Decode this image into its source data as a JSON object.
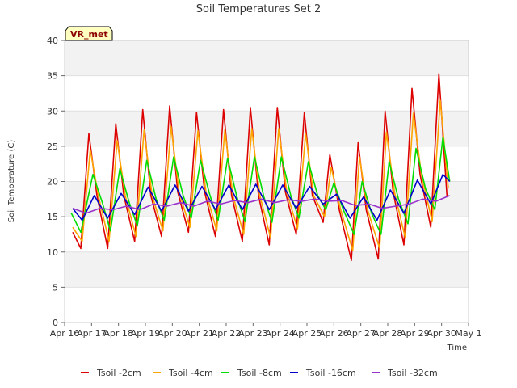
{
  "chart_data": {
    "type": "line",
    "title": "Soil Temperatures Set 2",
    "xlabel": "Time",
    "ylabel": "Soil Temperature (C)",
    "ylim": [
      0,
      40
    ],
    "xlim": [
      "Apr 16",
      "May 1"
    ],
    "yticks": [
      0,
      5,
      10,
      15,
      20,
      25,
      30,
      35,
      40
    ],
    "xticks": [
      "Apr 16",
      "Apr 17",
      "Apr 18",
      "Apr 19",
      "Apr 20",
      "Apr 21",
      "Apr 22",
      "Apr 23",
      "Apr 24",
      "Apr 25",
      "Apr 26",
      "Apr 27",
      "Apr 28",
      "Apr 29",
      "Apr 30",
      "May 1"
    ],
    "grid": "horizontal bands",
    "legend_position": "bottom",
    "badge": "VR_met",
    "series": [
      {
        "name": "Tsoil -2cm",
        "color": "#dd0000",
        "points": [
          [
            0.3,
            12.8
          ],
          [
            0.6,
            10.5
          ],
          [
            0.9,
            26.8
          ],
          [
            1.2,
            18
          ],
          [
            1.6,
            10.5
          ],
          [
            1.9,
            28.2
          ],
          [
            2.2,
            18
          ],
          [
            2.6,
            11.5
          ],
          [
            2.9,
            30.2
          ],
          [
            3.2,
            18
          ],
          [
            3.6,
            12.2
          ],
          [
            3.9,
            30.7
          ],
          [
            4.2,
            18.5
          ],
          [
            4.6,
            12.8
          ],
          [
            4.9,
            29.8
          ],
          [
            5.2,
            18.5
          ],
          [
            5.6,
            12.2
          ],
          [
            5.9,
            30.2
          ],
          [
            6.2,
            18
          ],
          [
            6.6,
            11.5
          ],
          [
            6.9,
            30.5
          ],
          [
            7.2,
            18
          ],
          [
            7.6,
            11
          ],
          [
            7.9,
            30.5
          ],
          [
            8.2,
            18.5
          ],
          [
            8.6,
            12.5
          ],
          [
            8.9,
            29.8
          ],
          [
            9.2,
            18
          ],
          [
            9.6,
            14.2
          ],
          [
            9.85,
            23.8
          ],
          [
            10.2,
            16
          ],
          [
            10.65,
            8.8
          ],
          [
            10.9,
            25.5
          ],
          [
            11.2,
            16
          ],
          [
            11.65,
            9
          ],
          [
            11.9,
            30
          ],
          [
            12.2,
            18.5
          ],
          [
            12.6,
            11
          ],
          [
            12.9,
            33.2
          ],
          [
            13.2,
            21
          ],
          [
            13.6,
            13.5
          ],
          [
            13.9,
            35.3
          ],
          [
            14.2,
            18
          ]
        ]
      },
      {
        "name": "Tsoil -4cm",
        "color": "#ffa500",
        "points": [
          [
            0.3,
            13.5
          ],
          [
            0.65,
            11.5
          ],
          [
            0.95,
            24.5
          ],
          [
            1.25,
            18
          ],
          [
            1.65,
            11.5
          ],
          [
            1.95,
            25.8
          ],
          [
            2.25,
            18
          ],
          [
            2.65,
            12.2
          ],
          [
            2.95,
            27.3
          ],
          [
            3.25,
            18
          ],
          [
            3.65,
            13
          ],
          [
            3.95,
            27.8
          ],
          [
            4.25,
            18.5
          ],
          [
            4.65,
            13.5
          ],
          [
            4.95,
            27.2
          ],
          [
            5.25,
            18.5
          ],
          [
            5.65,
            13
          ],
          [
            5.95,
            27.3
          ],
          [
            6.25,
            18
          ],
          [
            6.65,
            12.5
          ],
          [
            6.95,
            27.5
          ],
          [
            7.25,
            18
          ],
          [
            7.65,
            12
          ],
          [
            7.95,
            27.5
          ],
          [
            8.25,
            18.5
          ],
          [
            8.65,
            13.3
          ],
          [
            8.95,
            26.8
          ],
          [
            9.25,
            18
          ],
          [
            9.65,
            15
          ],
          [
            9.9,
            22
          ],
          [
            10.25,
            16
          ],
          [
            10.7,
            10.2
          ],
          [
            10.95,
            23.5
          ],
          [
            11.25,
            16
          ],
          [
            11.7,
            10.5
          ],
          [
            11.95,
            27
          ],
          [
            12.25,
            18.5
          ],
          [
            12.65,
            12
          ],
          [
            12.95,
            29.7
          ],
          [
            13.25,
            21
          ],
          [
            13.65,
            14.3
          ],
          [
            13.95,
            31.5
          ],
          [
            14.25,
            19
          ]
        ]
      },
      {
        "name": "Tsoil -8cm",
        "color": "#00dd00",
        "points": [
          [
            0.25,
            15.5
          ],
          [
            0.6,
            12.8
          ],
          [
            1.05,
            21
          ],
          [
            1.4,
            17
          ],
          [
            1.7,
            13
          ],
          [
            2.05,
            21.8
          ],
          [
            2.4,
            17
          ],
          [
            2.7,
            13.7
          ],
          [
            3.05,
            23
          ],
          [
            3.4,
            17.5
          ],
          [
            3.7,
            14.5
          ],
          [
            4.05,
            23.5
          ],
          [
            4.4,
            18
          ],
          [
            4.7,
            14.8
          ],
          [
            5.05,
            23
          ],
          [
            5.4,
            18
          ],
          [
            5.7,
            14.5
          ],
          [
            6.05,
            23.3
          ],
          [
            6.4,
            17.8
          ],
          [
            6.7,
            14.3
          ],
          [
            7.05,
            23.5
          ],
          [
            7.4,
            17.8
          ],
          [
            7.7,
            14.2
          ],
          [
            8.05,
            23.5
          ],
          [
            8.4,
            18
          ],
          [
            8.7,
            14.8
          ],
          [
            9.05,
            22.8
          ],
          [
            9.4,
            18
          ],
          [
            9.7,
            16
          ],
          [
            10.0,
            19.8
          ],
          [
            10.35,
            16
          ],
          [
            10.75,
            12.5
          ],
          [
            11.05,
            20
          ],
          [
            11.4,
            15.5
          ],
          [
            11.75,
            12.5
          ],
          [
            12.05,
            22.8
          ],
          [
            12.4,
            17.5
          ],
          [
            12.75,
            14
          ],
          [
            13.05,
            24.7
          ],
          [
            13.4,
            19
          ],
          [
            13.75,
            16
          ],
          [
            14.05,
            26.3
          ],
          [
            14.3,
            20
          ]
        ]
      },
      {
        "name": "Tsoil -16cm",
        "color": "#0000cc",
        "points": [
          [
            0.3,
            16.2
          ],
          [
            0.65,
            14.5
          ],
          [
            1.1,
            18
          ],
          [
            1.6,
            14.8
          ],
          [
            2.1,
            18.3
          ],
          [
            2.6,
            15.3
          ],
          [
            3.1,
            19.2
          ],
          [
            3.6,
            15.8
          ],
          [
            4.1,
            19.5
          ],
          [
            4.6,
            15.8
          ],
          [
            5.1,
            19.3
          ],
          [
            5.6,
            16
          ],
          [
            6.1,
            19.5
          ],
          [
            6.6,
            16
          ],
          [
            7.1,
            19.6
          ],
          [
            7.6,
            16
          ],
          [
            8.1,
            19.5
          ],
          [
            8.6,
            16.2
          ],
          [
            9.1,
            19.3
          ],
          [
            9.6,
            16.8
          ],
          [
            10.1,
            18.2
          ],
          [
            10.6,
            14.8
          ],
          [
            11.1,
            17.8
          ],
          [
            11.6,
            14.5
          ],
          [
            12.1,
            18.8
          ],
          [
            12.6,
            15.5
          ],
          [
            13.1,
            20.2
          ],
          [
            13.6,
            16.8
          ],
          [
            14.05,
            21
          ],
          [
            14.3,
            20
          ]
        ]
      },
      {
        "name": "Tsoil -32cm",
        "color": "#9933cc",
        "points": [
          [
            0.3,
            16.2
          ],
          [
            0.8,
            15.5
          ],
          [
            1.3,
            16.2
          ],
          [
            1.8,
            16
          ],
          [
            2.3,
            16.5
          ],
          [
            2.8,
            16
          ],
          [
            3.3,
            16.8
          ],
          [
            3.8,
            16.5
          ],
          [
            4.3,
            17
          ],
          [
            4.8,
            16.5
          ],
          [
            5.3,
            17.2
          ],
          [
            5.8,
            16.8
          ],
          [
            6.3,
            17.3
          ],
          [
            6.8,
            17
          ],
          [
            7.3,
            17.5
          ],
          [
            7.8,
            17
          ],
          [
            8.3,
            17.4
          ],
          [
            8.8,
            17.2
          ],
          [
            9.3,
            17.5
          ],
          [
            9.8,
            17.2
          ],
          [
            10.3,
            17.3
          ],
          [
            10.8,
            16.6
          ],
          [
            11.3,
            16.8
          ],
          [
            11.8,
            16.2
          ],
          [
            12.3,
            16.5
          ],
          [
            12.8,
            16.8
          ],
          [
            13.3,
            17.5
          ],
          [
            13.8,
            17.2
          ],
          [
            14.3,
            18
          ]
        ]
      }
    ]
  }
}
